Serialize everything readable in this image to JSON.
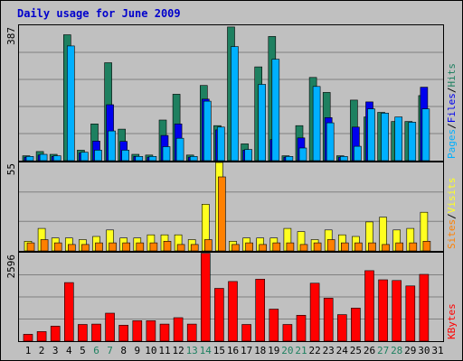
{
  "chart_data": [
    {
      "type": "bar",
      "title": "Daily usage for June 2009",
      "ymax_label": "387",
      "ylim": [
        0,
        387
      ],
      "categories": [
        "1",
        "2",
        "3",
        "4",
        "5",
        "6",
        "7",
        "8",
        "9",
        "10",
        "11",
        "12",
        "13",
        "14",
        "15",
        "16",
        "17",
        "18",
        "19",
        "20",
        "21",
        "22",
        "23",
        "24",
        "25",
        "26",
        "27",
        "28",
        "29",
        "30",
        "31"
      ],
      "weekend_days": [
        "6",
        "7",
        "13",
        "14",
        "20",
        "21",
        "27",
        "28"
      ],
      "series": [
        {
          "name": "Hits",
          "color": "#1e8060",
          "values": [
            14,
            26,
            18,
            360,
            30,
            105,
            280,
            90,
            18,
            16,
            116,
            190,
            16,
            215,
            100,
            382,
            48,
            268,
            355,
            14,
            100,
            238,
            195,
            14,
            173,
            125,
            138,
            112,
            112,
            186,
            0
          ]
        },
        {
          "name": "Files",
          "color": "#0000ee",
          "values": [
            10,
            16,
            12,
            0,
            22,
            56,
            160,
            55,
            12,
            10,
            72,
            105,
            10,
            176,
            88,
            0,
            30,
            0,
            60,
            10,
            65,
            0,
            123,
            10,
            96,
            168,
            0,
            0,
            0,
            210,
            0
          ]
        },
        {
          "name": "Pages",
          "color": "#00b0ff",
          "values": [
            12,
            18,
            14,
            328,
            24,
            30,
            85,
            30,
            12,
            12,
            40,
            64,
            12,
            170,
            96,
            326,
            32,
            218,
            290,
            12,
            36,
            212,
            108,
            12,
            41,
            148,
            136,
            125,
            110,
            148,
            0
          ]
        }
      ],
      "legend_right": [
        {
          "label": "Pages",
          "color": "#00b0ff"
        },
        {
          "label": "/",
          "color": "#000000"
        },
        {
          "label": "Files",
          "color": "#0000ee"
        },
        {
          "label": "/",
          "color": "#000000"
        },
        {
          "label": "Hits",
          "color": "#1e8060"
        }
      ]
    },
    {
      "type": "bar",
      "ymax_label": "55",
      "ylim": [
        0,
        55
      ],
      "categories": [
        "1",
        "2",
        "3",
        "4",
        "5",
        "6",
        "7",
        "8",
        "9",
        "10",
        "11",
        "12",
        "13",
        "14",
        "15",
        "16",
        "17",
        "18",
        "19",
        "20",
        "21",
        "22",
        "23",
        "24",
        "25",
        "26",
        "27",
        "28",
        "29",
        "30",
        "31"
      ],
      "series": [
        {
          "name": "Visits",
          "color": "#ffff20",
          "values": [
            6,
            14,
            8,
            8,
            7,
            9,
            13,
            8,
            8,
            10,
            10,
            10,
            7,
            29,
            55,
            6,
            8,
            8,
            8,
            14,
            12,
            7,
            13,
            10,
            9,
            18,
            21,
            13,
            14,
            24,
            0
          ]
        },
        {
          "name": "Sites",
          "color": "#ff8000",
          "values": [
            5,
            7,
            5,
            4,
            4,
            5,
            5,
            5,
            5,
            5,
            6,
            4,
            4,
            7,
            46,
            4,
            5,
            4,
            5,
            5,
            4,
            5,
            7,
            5,
            5,
            5,
            4,
            5,
            5,
            6,
            0
          ]
        }
      ],
      "legend_right": [
        {
          "label": "Sites",
          "color": "#ff8000"
        },
        {
          "label": "/",
          "color": "#000000"
        },
        {
          "label": "Visits",
          "color": "#ffff20"
        }
      ]
    },
    {
      "type": "bar",
      "ymax_label": "2596",
      "ylim": [
        0,
        2596
      ],
      "categories": [
        "1",
        "2",
        "3",
        "4",
        "5",
        "6",
        "7",
        "8",
        "9",
        "10",
        "11",
        "12",
        "13",
        "14",
        "15",
        "16",
        "17",
        "18",
        "19",
        "20",
        "21",
        "22",
        "23",
        "24",
        "25",
        "26",
        "27",
        "28",
        "29",
        "30",
        "31"
      ],
      "series": [
        {
          "name": "KBytes",
          "color": "#ff0000",
          "values": [
            200,
            280,
            440,
            1720,
            490,
            500,
            820,
            470,
            600,
            600,
            500,
            690,
            500,
            2580,
            1550,
            1750,
            490,
            1820,
            940,
            490,
            760,
            1700,
            1260,
            780,
            970,
            2070,
            1800,
            1780,
            1620,
            1960,
            0
          ]
        }
      ],
      "legend_right": [
        {
          "label": "KBytes",
          "color": "#ff0000"
        }
      ]
    }
  ]
}
